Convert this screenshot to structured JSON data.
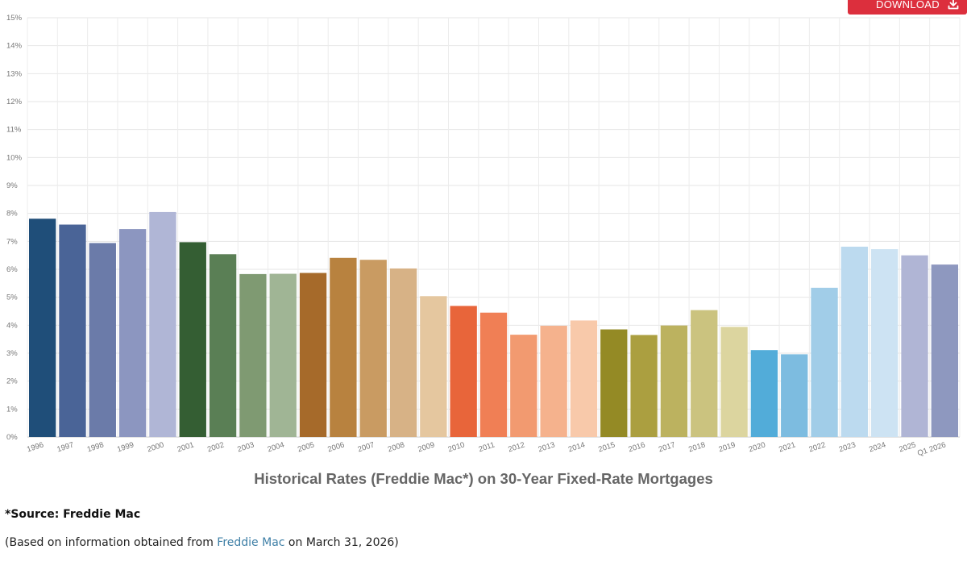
{
  "toolbar": {
    "download_label": "DOWNLOAD",
    "download_icon": "download-icon"
  },
  "chart_data": {
    "type": "bar",
    "title": "Historical Rates (Freddie Mac*) on 30-Year Fixed-Rate Mortgages",
    "xlabel": "",
    "ylabel": "",
    "ylim": [
      0,
      15
    ],
    "y_ticks": [
      "0%",
      "1%",
      "2%",
      "3%",
      "4%",
      "5%",
      "6%",
      "7%",
      "8%",
      "9%",
      "10%",
      "11%",
      "12%",
      "13%",
      "14%",
      "15%"
    ],
    "grid": true,
    "categories": [
      "1996",
      "1997",
      "1998",
      "1999",
      "2000",
      "2001",
      "2002",
      "2003",
      "2004",
      "2005",
      "2006",
      "2007",
      "2008",
      "2009",
      "2010",
      "2011",
      "2012",
      "2013",
      "2014",
      "2015",
      "2016",
      "2017",
      "2018",
      "2019",
      "2020",
      "2021",
      "2022",
      "2023",
      "2024",
      "2025",
      "Q1 2026"
    ],
    "values": [
      7.81,
      7.6,
      6.94,
      7.44,
      8.05,
      6.97,
      6.54,
      5.83,
      5.84,
      5.87,
      6.41,
      6.34,
      6.03,
      5.04,
      4.69,
      4.45,
      3.66,
      3.98,
      4.17,
      3.85,
      3.65,
      3.99,
      4.54,
      3.94,
      3.11,
      2.96,
      5.34,
      6.81,
      6.72,
      6.5,
      6.17
    ],
    "colors": [
      "#1f4e79",
      "#4a6497",
      "#6b7ba9",
      "#8c96c0",
      "#b0b6d6",
      "#345e33",
      "#5a7f55",
      "#7f9a72",
      "#a0b595",
      "#a66a2a",
      "#b8823f",
      "#c99b62",
      "#d7b286",
      "#e5c79f",
      "#e8653a",
      "#f07f55",
      "#f29a70",
      "#f5b28d",
      "#f8c9aa",
      "#948a25",
      "#ab9f40",
      "#bcb25f",
      "#cbc37f",
      "#dcd59f",
      "#52acd9",
      "#7dbce0",
      "#a1cde8",
      "#bcdaef",
      "#cde3f3",
      "#b0b5d5",
      "#8e98bf"
    ]
  },
  "footer": {
    "source": "*Source: Freddie Mac",
    "based_prefix": "(Based on information obtained from ",
    "based_link": "Freddie Mac",
    "based_suffix": " on March 31, 2026)"
  }
}
